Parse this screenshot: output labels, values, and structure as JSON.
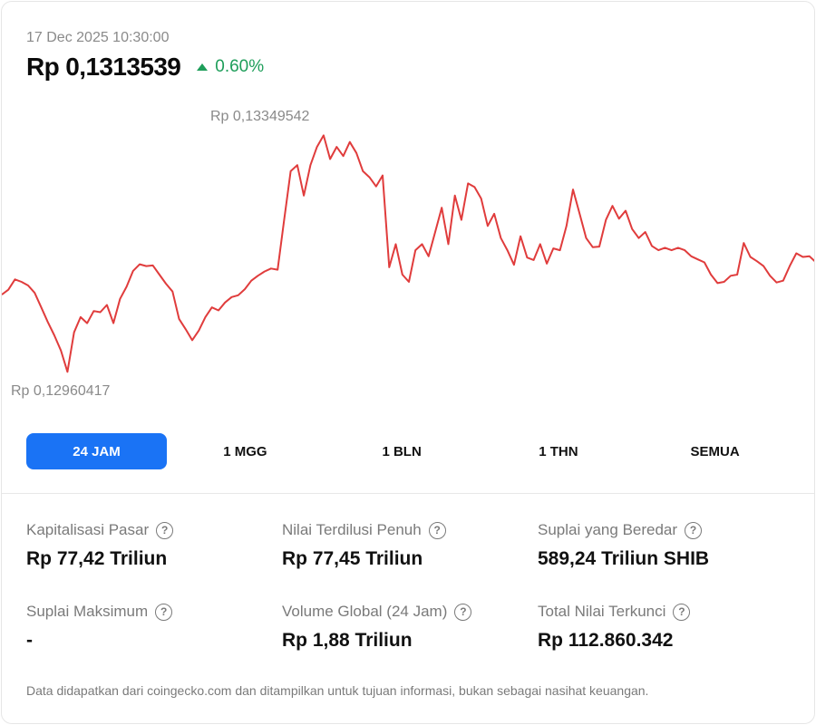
{
  "header": {
    "timestamp": "17 Dec 2025 10:30:00",
    "price": "Rp 0,1313539",
    "change": "0.60%",
    "change_color": "#1e9e5a",
    "change_icon": "triangle-up-icon"
  },
  "chart_data": {
    "type": "line",
    "title": "",
    "xlabel": "",
    "ylabel": "",
    "high_label": "Rp 0,13349542",
    "low_label": "Rp 0,12960417",
    "ylim": [
      0.12960417,
      0.13349542
    ],
    "line_color": "#e03c3c",
    "series": [
      {
        "values": [
          0.13087,
          0.13095,
          0.13112,
          0.13108,
          0.13102,
          0.1309,
          0.13066,
          0.13042,
          0.1302,
          0.12995,
          0.1296,
          0.13025,
          0.1305,
          0.1304,
          0.1306,
          0.13058,
          0.1307,
          0.1304,
          0.1308,
          0.131,
          0.13126,
          0.13137,
          0.13134,
          0.13135,
          0.1312,
          0.13105,
          0.13092,
          0.13047,
          0.1303,
          0.13012,
          0.13028,
          0.1305,
          0.13066,
          0.13061,
          0.13074,
          0.13083,
          0.13086,
          0.13096,
          0.1311,
          0.13118,
          0.13125,
          0.1313,
          0.13128,
          0.1321,
          0.1329,
          0.133,
          0.1325,
          0.133,
          0.1333,
          0.13349,
          0.1331,
          0.1333,
          0.13315,
          0.13338,
          0.1332,
          0.1329,
          0.1328,
          0.13265,
          0.13283,
          0.13132,
          0.1317,
          0.1312,
          0.13108,
          0.1316,
          0.1317,
          0.1315,
          0.1319,
          0.1323,
          0.1317,
          0.1325,
          0.1321,
          0.1327,
          0.13264,
          0.13245,
          0.132,
          0.1322,
          0.1318,
          0.1316,
          0.13136,
          0.13183,
          0.13148,
          0.13144,
          0.1317,
          0.13138,
          0.13163,
          0.1316,
          0.132,
          0.1326,
          0.1322,
          0.1318,
          0.13165,
          0.13166,
          0.1321,
          0.13233,
          0.13212,
          0.13225,
          0.13195,
          0.1318,
          0.1319,
          0.13167,
          0.1316,
          0.13164,
          0.1316,
          0.13164,
          0.1316,
          0.1315,
          0.13145,
          0.1314,
          0.1312,
          0.13106,
          0.13108,
          0.13118,
          0.1312,
          0.13172,
          0.13149,
          0.13142,
          0.13134,
          0.13118,
          0.13107,
          0.1311,
          0.13134,
          0.13155,
          0.13149,
          0.1315,
          0.1314
        ]
      }
    ]
  },
  "tabs": [
    {
      "label": "24 JAM",
      "active": true
    },
    {
      "label": "1 MGG",
      "active": false
    },
    {
      "label": "1 BLN",
      "active": false
    },
    {
      "label": "1 THN",
      "active": false
    },
    {
      "label": "SEMUA",
      "active": false
    }
  ],
  "stats": [
    {
      "label": "Kapitalisasi Pasar",
      "value": "Rp 77,42 Triliun"
    },
    {
      "label": "Nilai Terdilusi Penuh",
      "value": "Rp 77,45 Triliun"
    },
    {
      "label": "Suplai yang Beredar",
      "value": "589,24 Triliun SHIB"
    },
    {
      "label": "Suplai Maksimum",
      "value": "-"
    },
    {
      "label": "Volume Global (24 Jam)",
      "value": "Rp 1,88 Triliun"
    },
    {
      "label": "Total Nilai Terkunci",
      "value": "Rp 112.860.342"
    }
  ],
  "help_icon_glyph": "?",
  "disclaimer": "Data didapatkan dari coingecko.com dan ditampilkan untuk tujuan informasi, bukan sebagai nasihat keuangan."
}
